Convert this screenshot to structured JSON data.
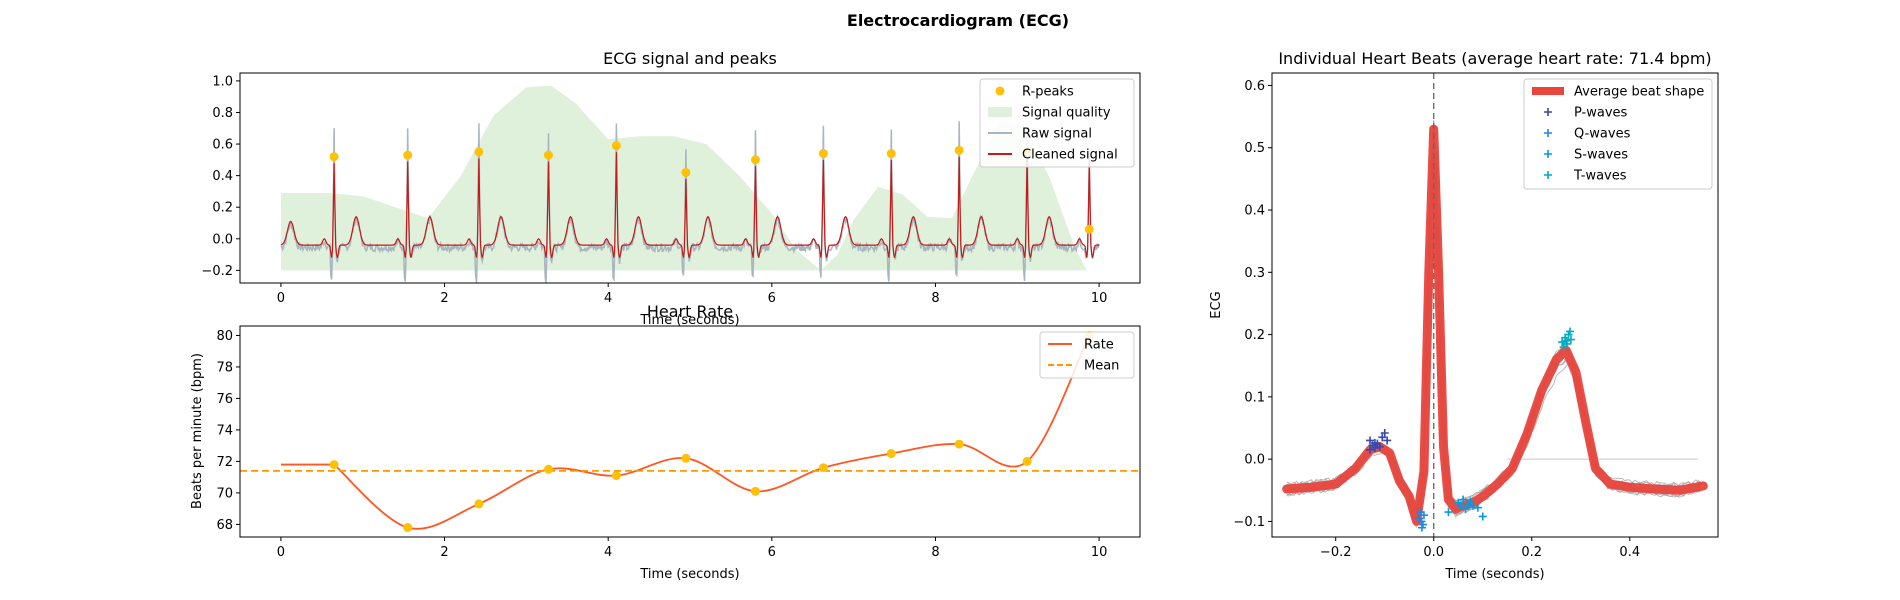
{
  "figure_title": "Electrocardiogram (ECG)",
  "colors": {
    "raw": "#a9b5bf",
    "cleaned": "#c21b1b",
    "peak": "#ffc107",
    "quality": "#dff0db",
    "rate": "#ff5722",
    "mean": "#ff9800",
    "avg_beat": "#e8453c",
    "beat_lines": "#a0a0a0",
    "p_wave": "#3949ab",
    "q_wave": "#1e88e5",
    "s_wave": "#039be5",
    "t_wave": "#00acc1"
  },
  "chart_data": [
    {
      "id": "ecg_signal",
      "type": "line",
      "title": "ECG signal and peaks",
      "xlabel": "Time (seconds)",
      "ylabel": "",
      "xlim": [
        -0.5,
        10.5
      ],
      "ylim": [
        -0.28,
        1.05
      ],
      "xticks": [
        "0",
        "2",
        "4",
        "6",
        "8",
        "10"
      ],
      "yticks": [
        "−0.2",
        "0.0",
        "0.2",
        "0.4",
        "0.6",
        "0.8",
        "1.0"
      ],
      "legend_position": "top-right",
      "legend": [
        "R-peaks",
        "Signal quality",
        "Raw signal",
        "Cleaned signal"
      ],
      "r_peaks": {
        "x": [
          0.65,
          1.55,
          2.42,
          3.27,
          4.1,
          4.95,
          5.8,
          6.63,
          7.46,
          8.29,
          9.12,
          9.88
        ],
        "y": [
          0.52,
          0.53,
          0.55,
          0.53,
          0.59,
          0.42,
          0.5,
          0.54,
          0.54,
          0.56,
          0.55,
          0.06
        ]
      },
      "signal_quality": {
        "x": [
          0,
          0.6,
          1.0,
          1.4,
          1.8,
          2.2,
          2.6,
          3.0,
          3.3,
          3.6,
          4.0,
          4.4,
          4.8,
          5.2,
          5.6,
          6.0,
          6.3,
          6.6,
          6.8,
          7.0,
          7.3,
          7.6,
          7.9,
          8.2,
          8.5,
          8.8,
          9.1,
          9.4,
          9.7,
          9.85
        ],
        "y": [
          0.29,
          0.29,
          0.27,
          0.2,
          0.13,
          0.4,
          0.78,
          0.96,
          0.97,
          0.86,
          0.63,
          0.65,
          0.65,
          0.6,
          0.4,
          0.16,
          -0.07,
          -0.2,
          -0.1,
          0.12,
          0.33,
          0.28,
          0.14,
          0.13,
          0.45,
          0.75,
          0.7,
          0.38,
          -0.05,
          -0.2
        ]
      }
    },
    {
      "id": "heart_rate",
      "type": "line",
      "title": "Heart Rate",
      "xlabel": "Time (seconds)",
      "ylabel": "Beats per minute (bpm)",
      "xlim": [
        -0.5,
        10.5
      ],
      "ylim": [
        67.2,
        80.6
      ],
      "xticks": [
        "0",
        "2",
        "4",
        "6",
        "8",
        "10"
      ],
      "yticks": [
        "68",
        "70",
        "72",
        "74",
        "76",
        "78",
        "80"
      ],
      "legend_position": "top-right",
      "legend": [
        "Rate",
        "Mean"
      ],
      "series": [
        {
          "name": "Rate",
          "x": [
            0.65,
            1.55,
            2.42,
            3.27,
            4.1,
            4.95,
            5.8,
            6.63,
            7.46,
            8.29,
            9.12,
            9.88
          ],
          "values": [
            71.8,
            67.8,
            69.3,
            71.5,
            71.1,
            72.2,
            70.1,
            71.6,
            72.5,
            73.1,
            72.0,
            80.0
          ]
        }
      ],
      "start_value": 71.8,
      "mean": 71.4
    },
    {
      "id": "heart_beats",
      "type": "line",
      "title": "Individual Heart Beats (average heart rate: 71.4 bpm)",
      "xlabel": "Time (seconds)",
      "ylabel": "ECG",
      "xlim": [
        -0.33,
        0.58
      ],
      "ylim": [
        -0.125,
        0.62
      ],
      "xticks": [
        "−0.2",
        "0.0",
        "0.2",
        "0.4"
      ],
      "yticks": [
        "−0.1",
        "0.0",
        "0.1",
        "0.2",
        "0.3",
        "0.4",
        "0.5",
        "0.6"
      ],
      "legend_position": "top-right",
      "legend": [
        "Average beat shape",
        "P-waves",
        "Q-waves",
        "S-waves",
        "T-waves"
      ],
      "average_beat": {
        "x": [
          -0.3,
          -0.25,
          -0.2,
          -0.16,
          -0.13,
          -0.11,
          -0.09,
          -0.07,
          -0.05,
          -0.035,
          -0.02,
          -0.01,
          0.0,
          0.01,
          0.02,
          0.03,
          0.045,
          0.06,
          0.08,
          0.1,
          0.13,
          0.16,
          0.19,
          0.22,
          0.25,
          0.27,
          0.29,
          0.31,
          0.33,
          0.36,
          0.4,
          0.45,
          0.5,
          0.55
        ],
        "y": [
          -0.048,
          -0.045,
          -0.04,
          -0.015,
          0.015,
          0.02,
          0.01,
          -0.035,
          -0.06,
          -0.1,
          -0.02,
          0.3,
          0.53,
          0.3,
          0.02,
          -0.065,
          -0.08,
          -0.075,
          -0.07,
          -0.06,
          -0.04,
          -0.015,
          0.04,
          0.11,
          0.16,
          0.175,
          0.14,
          0.06,
          -0.015,
          -0.04,
          -0.045,
          -0.048,
          -0.05,
          -0.043
        ]
      },
      "p_waves": {
        "x": [
          -0.13,
          -0.125,
          -0.12,
          -0.115,
          -0.11,
          -0.105,
          -0.1,
          -0.095,
          -0.13,
          -0.12
        ],
        "y": [
          0.03,
          0.022,
          0.018,
          0.025,
          0.02,
          0.035,
          0.042,
          0.03,
          0.015,
          0.026
        ]
      },
      "q_waves": {
        "x": [
          -0.025,
          -0.022,
          -0.03,
          -0.02,
          -0.024,
          -0.027
        ],
        "y": [
          -0.1,
          -0.105,
          -0.095,
          -0.09,
          -0.11,
          -0.085
        ]
      },
      "s_waves": {
        "x": [
          0.05,
          0.055,
          0.06,
          0.065,
          0.07,
          0.075,
          0.08,
          0.1,
          0.03,
          0.09
        ],
        "y": [
          -0.07,
          -0.075,
          -0.065,
          -0.08,
          -0.072,
          -0.068,
          -0.075,
          -0.092,
          -0.085,
          -0.078
        ]
      },
      "t_waves": {
        "x": [
          0.265,
          0.27,
          0.275,
          0.268,
          0.272,
          0.278,
          0.262,
          0.28
        ],
        "y": [
          0.18,
          0.19,
          0.2,
          0.195,
          0.185,
          0.205,
          0.188,
          0.192
        ]
      }
    }
  ]
}
